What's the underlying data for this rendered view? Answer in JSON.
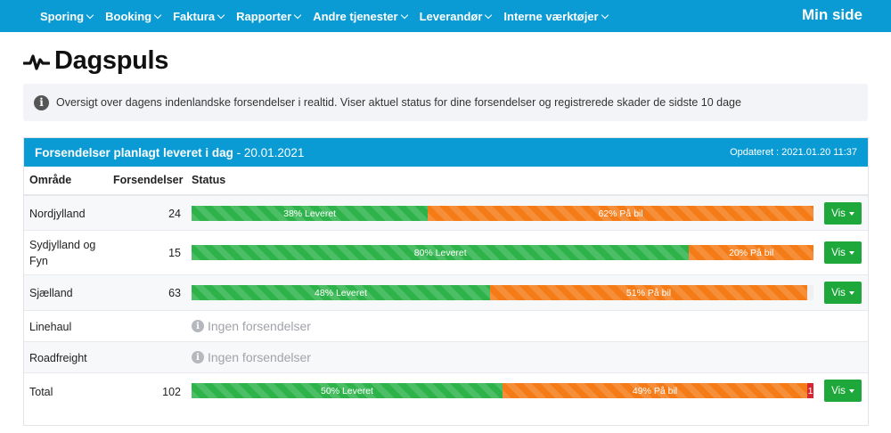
{
  "nav": {
    "items": [
      {
        "label": "Sporing"
      },
      {
        "label": "Booking"
      },
      {
        "label": "Faktura"
      },
      {
        "label": "Rapporter"
      },
      {
        "label": "Andre tjenester"
      },
      {
        "label": "Leverandør"
      },
      {
        "label": "Interne værktøjer"
      }
    ],
    "account_label": "Min side"
  },
  "page": {
    "title": "Dagspuls",
    "info_text": "Oversigt over dagens indenlandske forsendelser i realtid. Viser aktuel status for dine forsendelser og registrerede skader de sidste 10 dage"
  },
  "panel": {
    "title_bold": "Forsendelser planlagt leveret i dag",
    "title_date": " - 20.01.2021",
    "updated": "Opdateret : 2021.01.20 11:37",
    "columns": {
      "area": "Område",
      "count": "Forsendelser",
      "status": "Status"
    },
    "rows": [
      {
        "area": "Nordjylland",
        "count": "24",
        "delivered": 38,
        "delivered_label": "38% Leveret",
        "onbike": 62,
        "onbike_label": "62% På bil",
        "button": "Vis"
      },
      {
        "area": "Sydjylland og Fyn",
        "count": "15",
        "delivered": 80,
        "delivered_label": "80% Leveret",
        "onbike": 20,
        "onbike_label": "20% På bil",
        "button": "Vis"
      },
      {
        "area": "Sjælland",
        "count": "63",
        "delivered": 48,
        "delivered_label": "48% Leveret",
        "onbike": 51,
        "onbike_label": "51% På bil",
        "button": "Vis"
      },
      {
        "area": "Linehaul",
        "empty": "Ingen forsendelser"
      },
      {
        "area": "Roadfreight",
        "empty": "Ingen forsendelser"
      },
      {
        "area": "Total",
        "count": "102",
        "delivered": 50,
        "delivered_label": "50% Leveret",
        "onbike": 49,
        "onbike_label": "49% På bil",
        "other": 1,
        "other_label": "1",
        "button": "Vis"
      }
    ]
  },
  "colors": {
    "header_blue": "#0a9bd4",
    "delivered_green": "#2db34a",
    "onbike_orange": "#f47b16",
    "other_red": "#d9252f",
    "button_green": "#1ea83c"
  }
}
